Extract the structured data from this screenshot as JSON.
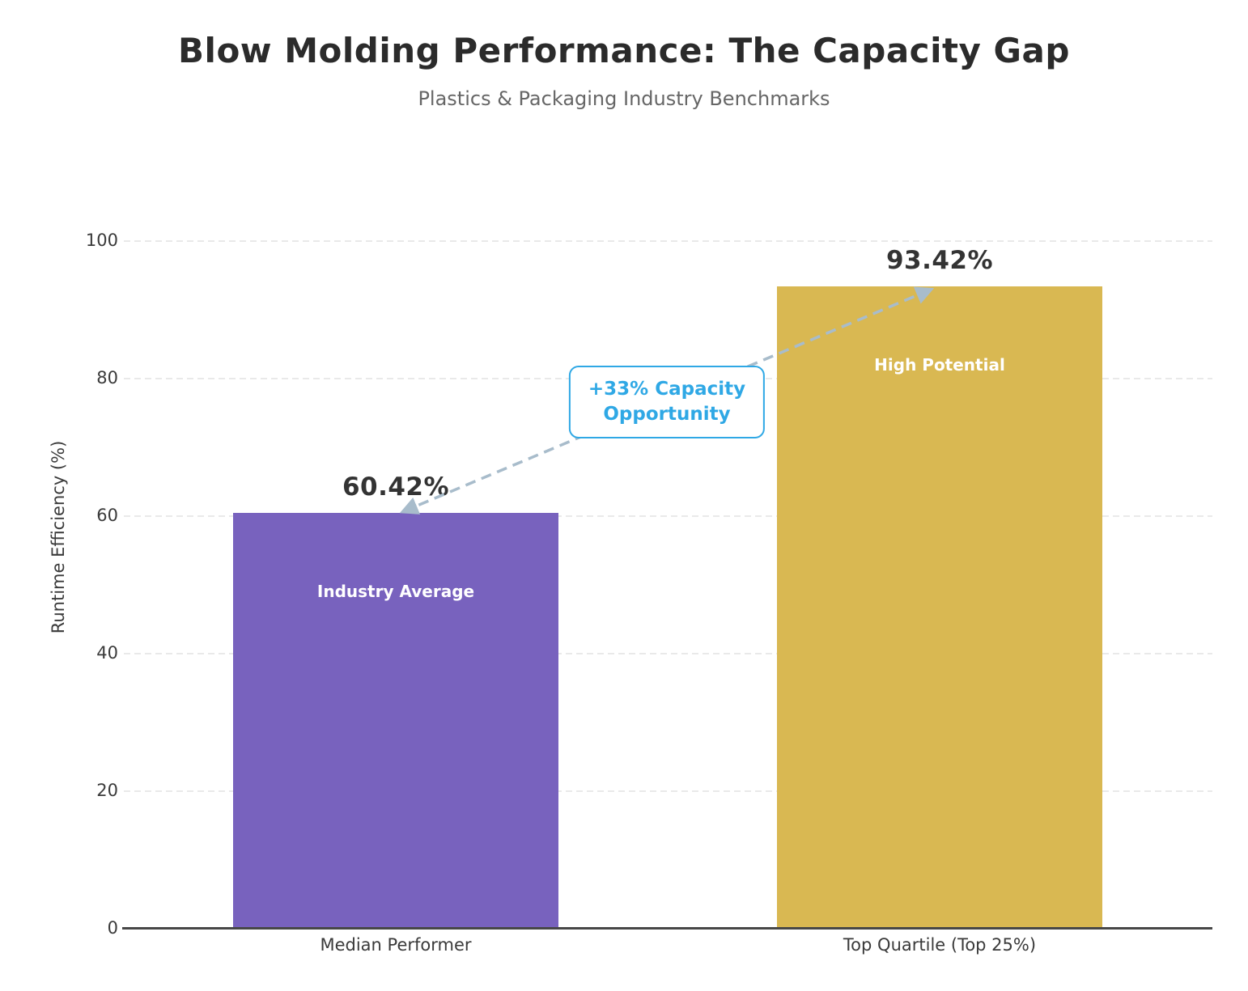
{
  "chart_data": {
    "type": "bar",
    "title": "Blow Molding Performance: The Capacity Gap",
    "subtitle": "Plastics & Packaging Industry Benchmarks",
    "ylabel": "Runtime Efficiency (%)",
    "xlabel": "",
    "categories": [
      "Median Performer",
      "Top Quartile (Top 25%)"
    ],
    "values": [
      60.42,
      93.42
    ],
    "value_labels": [
      "60.42%",
      "93.42%"
    ],
    "inner_labels": [
      "Industry Average",
      "High Potential"
    ],
    "bar_colors": [
      "#7862be",
      "#d9b852"
    ],
    "ylim": [
      0,
      100
    ],
    "yticks": [
      0,
      20,
      40,
      60,
      80,
      100
    ],
    "grid": "horizontal dashed, light gray",
    "legend": "none",
    "annotation": {
      "lines": [
        "+33% Capacity",
        "Opportunity"
      ],
      "text_color": "#2fa8e5",
      "border_color": "#2fa8e5",
      "arrow_color": "#a8bccb",
      "arrow_style": "dashed double-headed arrow between bar tops"
    },
    "colors": {
      "title": "#2b2b2b",
      "subtitle": "#666666",
      "axis_line": "#474747",
      "tick_label": "#3a3a3a",
      "category_label": "#3a3a3a",
      "value_label": "#333333",
      "inner_label": "#ffffff",
      "gridline": "#e9e9e9",
      "background": "#ffffff"
    }
  }
}
